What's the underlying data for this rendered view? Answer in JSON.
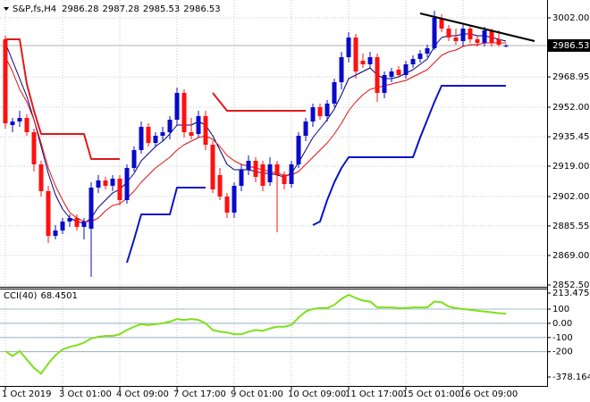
{
  "chart_data": {
    "type": "candlestick",
    "title": "S&P,fs,H4",
    "categories": [
      "1 Oct 2019",
      null,
      null,
      null,
      null,
      null,
      null,
      null,
      "3 Oct 01:00",
      null,
      null,
      null,
      null,
      null,
      null,
      null,
      "4 Oct 09:00",
      null,
      null,
      null,
      null,
      null,
      null,
      null,
      "7 Oct 17:00",
      null,
      null,
      null,
      null,
      null,
      null,
      null,
      "9 Oct 01:00",
      null,
      null,
      null,
      null,
      null,
      null,
      null,
      "10 Oct 09:00",
      null,
      null,
      null,
      null,
      null,
      null,
      null,
      "11 Oct 17:00",
      null,
      null,
      null,
      null,
      null,
      null,
      null,
      "15 Oct 01:00",
      null,
      null,
      null,
      null,
      null,
      null,
      null,
      "16 Oct 09:00",
      null,
      null,
      null,
      null,
      null,
      null
    ],
    "open": [
      2990,
      2942,
      2944,
      2946,
      2938,
      2920,
      2905,
      2880,
      2883,
      2888,
      2890,
      2885,
      2884,
      2907,
      2911,
      2908,
      2912,
      2900,
      2918,
      2928,
      2941,
      2932,
      2936,
      2938,
      2945,
      2960,
      2938,
      2937,
      2947,
      2931,
      2914,
      2902,
      2893,
      2908,
      2917,
      2922,
      2920,
      2910,
      2920,
      2914,
      2909,
      2920,
      2936,
      2944,
      2952,
      2947,
      2954,
      2966,
      2980,
      2991,
      2978,
      2976,
      2980,
      2960,
      2969,
      2973,
      2970,
      2976,
      2979,
      2982,
      2985,
      3002,
      2996,
      2991,
      2989,
      2996,
      2990,
      2988,
      2995,
      2990,
      2986.28
    ],
    "high": [
      2992,
      2946,
      2950,
      2948,
      2940,
      2922,
      2908,
      2886,
      2890,
      2892,
      2892,
      2890,
      2910,
      2914,
      2913,
      2914,
      2914,
      2920,
      2930,
      2944,
      2943,
      2938,
      2941,
      2947,
      2963,
      2962,
      2946,
      2950,
      2950,
      2933,
      2918,
      2904,
      2910,
      2920,
      2925,
      2924,
      2922,
      2924,
      2922,
      2916,
      2922,
      2938,
      2946,
      2954,
      2954,
      2956,
      2968,
      2983,
      2994,
      2993,
      2982,
      2983,
      2982,
      2972,
      2974,
      2975,
      2978,
      2981,
      2984,
      2987,
      3006,
      3004,
      2998,
      2996,
      2998,
      2998,
      2992,
      2997,
      2996,
      2995,
      2987.28
    ],
    "low": [
      2940,
      2938,
      2941,
      2936,
      2916,
      2902,
      2876,
      2878,
      2881,
      2885,
      2883,
      2878,
      2857,
      2904,
      2906,
      2905,
      2897,
      2898,
      2916,
      2926,
      2930,
      2930,
      2933,
      2934,
      2942,
      2935,
      2934,
      2935,
      2928,
      2904,
      2900,
      2890,
      2890,
      2905,
      2914,
      2910,
      2905,
      2908,
      2882,
      2906,
      2907,
      2918,
      2933,
      2941,
      2945,
      2944,
      2952,
      2962,
      2977,
      2968,
      2974,
      2974,
      2955,
      2957,
      2966,
      2969,
      2968,
      2974,
      2977,
      2980,
      2984,
      2994,
      2989,
      2987,
      2986,
      2988,
      2986,
      2986,
      2986,
      2986,
      2985.53
    ],
    "close": [
      2943,
      2944,
      2946,
      2938,
      2920,
      2905,
      2880,
      2883,
      2888,
      2890,
      2885,
      2888,
      2907,
      2911,
      2908,
      2912,
      2900,
      2918,
      2928,
      2941,
      2932,
      2936,
      2938,
      2945,
      2960,
      2938,
      2936,
      2947,
      2931,
      2906,
      2902,
      2893,
      2908,
      2917,
      2922,
      2913,
      2908,
      2920,
      2914,
      2909,
      2920,
      2936,
      2944,
      2952,
      2947,
      2954,
      2966,
      2980,
      2991,
      2972,
      2976,
      2980,
      2960,
      2970,
      2972,
      2970,
      2976,
      2979,
      2982,
      2985,
      3002,
      2996,
      2991,
      2989,
      2996,
      2990,
      2988,
      2995,
      2988,
      2987,
      2986.53
    ],
    "up_color": "#0a0ac8",
    "down_color": "#ff1010",
    "ylim": [
      2852.5,
      3010
    ],
    "yticks": [
      {
        "value": 3002,
        "label": "3002.00"
      },
      {
        "value": 2968.95,
        "label": "2968.95"
      },
      {
        "value": 2952,
        "label": "2952.00"
      },
      {
        "value": 2935.45,
        "label": "2935.45"
      },
      {
        "value": 2919,
        "label": "2919.00"
      },
      {
        "value": 2902,
        "label": "2902.00"
      },
      {
        "value": 2885.55,
        "label": "2885.55"
      },
      {
        "value": 2869,
        "label": "2869.00"
      },
      {
        "value": 2852.5,
        "label": "2852.50"
      }
    ],
    "grid": true,
    "lines": [
      {
        "color": "#00007a",
        "values": [
          2988,
          2978,
          2968,
          2958,
          2945,
          2930,
          2915,
          2903,
          2895,
          2890,
          2888,
          2887,
          2890,
          2896,
          2900,
          2904,
          2906,
          2910,
          2915,
          2922,
          2926,
          2930,
          2933,
          2937,
          2942,
          2942,
          2942,
          2944,
          2942,
          2936,
          2928,
          2920,
          2917,
          2917,
          2917,
          2916,
          2915,
          2915,
          2914,
          2913,
          2915,
          2921,
          2928,
          2935,
          2940,
          2945,
          2951,
          2959,
          2968,
          2970,
          2972,
          2974,
          2970,
          2968,
          2968,
          2969,
          2971,
          2973,
          2976,
          2979,
          2986,
          2991,
          2992,
          2992,
          2993,
          2993,
          2992,
          2992,
          2991,
          2990,
          2989
        ]
      },
      {
        "color": "#e01010",
        "values": [
          2980,
          2972,
          2962,
          2955,
          2945,
          2932,
          2918,
          2908,
          2900,
          2893,
          2890,
          2888,
          2888,
          2890,
          2894,
          2897,
          2898,
          2901,
          2905,
          2910,
          2914,
          2918,
          2921,
          2924,
          2928,
          2931,
          2933,
          2935,
          2936,
          2934,
          2930,
          2925,
          2922,
          2920,
          2919,
          2918,
          2917,
          2916,
          2915,
          2914,
          2914,
          2916,
          2920,
          2924,
          2928,
          2932,
          2937,
          2943,
          2950,
          2955,
          2959,
          2962,
          2963,
          2964,
          2965,
          2966,
          2967,
          2969,
          2971,
          2973,
          2977,
          2981,
          2983,
          2984,
          2986,
          2987,
          2987,
          2988,
          2988,
          2988,
          2988
        ]
      },
      {
        "color": "#e01a1a",
        "values": [
          2990,
          2990,
          2990,
          2965,
          2950,
          2937,
          2937,
          2937,
          2937,
          2937,
          2937,
          2937,
          2923,
          2923,
          2923,
          2923,
          2923,
          null,
          null,
          null,
          null,
          null,
          null,
          null,
          null,
          null,
          null,
          null,
          null,
          2960,
          2955,
          2950,
          2950,
          2950,
          2950,
          2950,
          2950,
          2950,
          2950,
          2950,
          2950,
          2950,
          2950,
          null,
          null,
          null,
          null,
          null,
          null,
          null,
          null,
          null,
          null,
          null,
          null,
          null,
          null,
          null,
          null,
          null,
          null,
          null,
          null,
          null,
          null,
          null,
          null,
          null,
          null,
          null,
          null
        ]
      },
      {
        "color": "#0a14c8",
        "values": [
          null,
          null,
          null,
          null,
          null,
          null,
          null,
          null,
          null,
          null,
          null,
          null,
          null,
          null,
          null,
          null,
          null,
          2865,
          2878,
          2892,
          2892,
          2892,
          2892,
          2892,
          2907,
          2907,
          2907,
          2907,
          2907,
          null,
          null,
          null,
          null,
          null,
          null,
          null,
          null,
          null,
          null,
          null,
          null,
          null,
          null,
          2886,
          2888,
          2900,
          2910,
          2918,
          2924,
          2924,
          2924,
          2924,
          2924,
          2924,
          2924,
          2924,
          2924,
          2924,
          2935,
          2945,
          2955,
          2964,
          2964,
          2964,
          2964,
          2964,
          2964,
          2964,
          2964,
          2964,
          2964
        ]
      }
    ],
    "trendline": {
      "color": "#000000",
      "x": [
        58,
        74
      ],
      "values": [
        3004.5,
        2989
      ]
    },
    "cci": {
      "type": "line",
      "title": "CCI(40)",
      "color": "#7ee01a",
      "values": [
        -195,
        -231,
        -195,
        -255,
        -314,
        -355,
        -284,
        -225,
        -184,
        -166,
        -154,
        -136,
        -107,
        -95,
        -89,
        -89,
        -77,
        -47,
        -24,
        -6,
        -12,
        -6,
        0,
        12,
        30,
        24,
        30,
        24,
        0,
        -47,
        -59,
        -65,
        -77,
        -77,
        -59,
        -47,
        -53,
        -36,
        -24,
        -24,
        -12,
        41,
        83,
        101,
        107,
        107,
        130,
        172,
        201,
        178,
        160,
        154,
        112,
        112,
        112,
        107,
        107,
        112,
        112,
        112,
        154,
        148,
        118,
        107,
        101,
        95,
        89,
        83,
        77,
        71,
        68.4501
      ],
      "ylim": [
        -378.1644,
        213.4753
      ],
      "yticks": [
        213.4753,
        100,
        {
          "value": 0,
          "label": "0.00"
        },
        -100,
        -200,
        -378.1644
      ]
    }
  }
}
